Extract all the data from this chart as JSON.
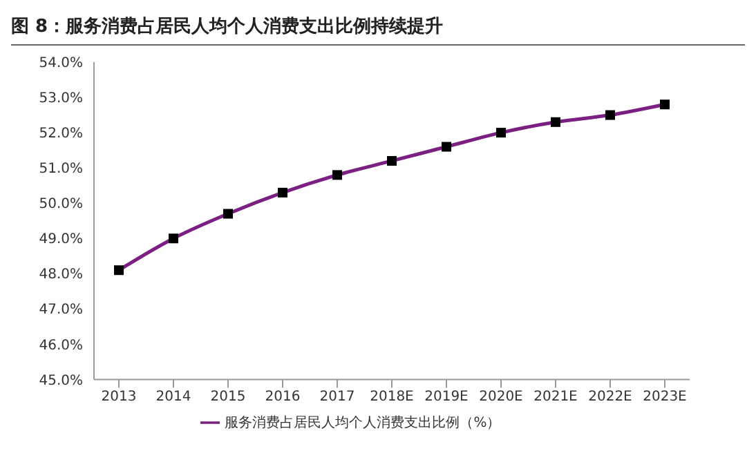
{
  "chart_data": {
    "type": "line",
    "title": "图 8：服务消费占居民人均个人消费支出比例持续提升",
    "categories": [
      "2013",
      "2014",
      "2015",
      "2016",
      "2017",
      "2018E",
      "2019E",
      "2020E",
      "2021E",
      "2022E",
      "2023E"
    ],
    "series": [
      {
        "name": "服务消费占居民人均个人消费支出比例（%）",
        "color": "#7b1f82",
        "values": [
          48.1,
          49.0,
          49.7,
          50.3,
          50.8,
          51.2,
          51.6,
          52.0,
          52.3,
          52.5,
          52.8
        ]
      }
    ],
    "ylim": [
      45,
      54
    ],
    "yticks": [
      {
        "value": 45,
        "label": "45.0%"
      },
      {
        "value": 46,
        "label": "46.0%"
      },
      {
        "value": 47,
        "label": "47.0%"
      },
      {
        "value": 48,
        "label": "48.0%"
      },
      {
        "value": 49,
        "label": "49.0%"
      },
      {
        "value": 50,
        "label": "50.0%"
      },
      {
        "value": 51,
        "label": "51.0%"
      },
      {
        "value": 52,
        "label": "52.0%"
      },
      {
        "value": 53,
        "label": "53.0%"
      },
      {
        "value": 54,
        "label": "54.0%"
      }
    ],
    "grid": false,
    "legend": "bottom",
    "marker": "square",
    "line_style": "solid"
  }
}
